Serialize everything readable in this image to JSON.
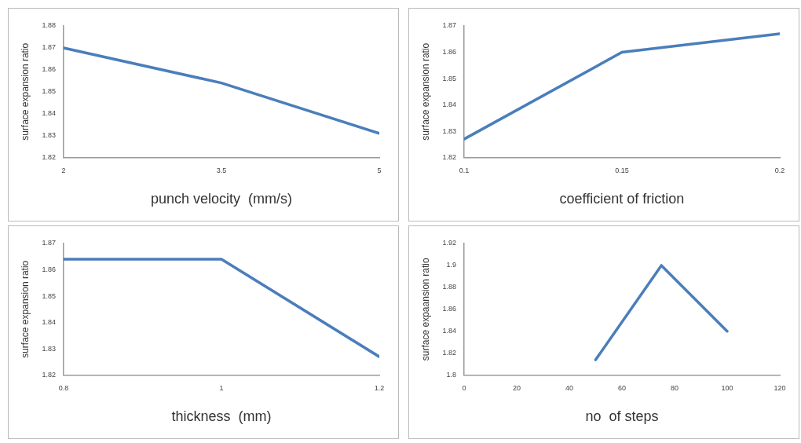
{
  "chart_data": [
    {
      "type": "line",
      "xlabel": "punch velocity  (mm/s)",
      "ylabel": "surface expansion ratio",
      "x": [
        2,
        3.5,
        5
      ],
      "values": [
        1.87,
        1.854,
        1.831
      ],
      "color": "#4a7ebb",
      "xlim": [
        2,
        5
      ],
      "xticks": [
        2,
        3.5,
        5
      ],
      "ylim": [
        1.82,
        1.88
      ],
      "yticks": [
        1.82,
        1.83,
        1.84,
        1.85,
        1.86,
        1.87,
        1.88
      ]
    },
    {
      "type": "line",
      "xlabel": "coefficient of friction",
      "ylabel": "surface expansion ratio",
      "x": [
        0.1,
        0.15,
        0.2
      ],
      "values": [
        1.827,
        1.86,
        1.867
      ],
      "color": "#4a7ebb",
      "xlim": [
        0.1,
        0.2
      ],
      "xticks": [
        0.1,
        0.15,
        0.2
      ],
      "ylim": [
        1.82,
        1.87
      ],
      "yticks": [
        1.82,
        1.83,
        1.84,
        1.85,
        1.86,
        1.87
      ]
    },
    {
      "type": "line",
      "xlabel": "thickness  (mm)",
      "ylabel": "surface expansion ratio",
      "x": [
        0.8,
        1,
        1.2
      ],
      "values": [
        1.864,
        1.864,
        1.827
      ],
      "color": "#4a7ebb",
      "xlim": [
        0.8,
        1.2
      ],
      "xticks": [
        0.8,
        1,
        1.2
      ],
      "ylim": [
        1.82,
        1.87
      ],
      "yticks": [
        1.82,
        1.83,
        1.84,
        1.85,
        1.86,
        1.87
      ]
    },
    {
      "type": "line",
      "xlabel": "no  of steps",
      "ylabel": "surface expaansion ratio",
      "x": [
        50,
        75,
        100
      ],
      "values": [
        1.814,
        1.9,
        1.84
      ],
      "color": "#4a7ebb",
      "xlim": [
        0,
        120
      ],
      "xticks": [
        0,
        20,
        40,
        60,
        80,
        100,
        120
      ],
      "ylim": [
        1.8,
        1.92
      ],
      "yticks": [
        1.8,
        1.82,
        1.84,
        1.86,
        1.88,
        1.9,
        1.92
      ]
    }
  ]
}
